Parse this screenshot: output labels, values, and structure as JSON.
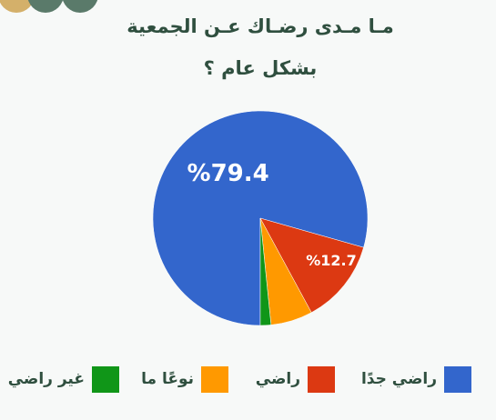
{
  "chart_data": {
    "type": "pie",
    "title_lines": [
      "مـا مـدى رضـاك عـن الجمعية",
      "بشكل عام ؟"
    ],
    "categories": [
      "راضي جدًا",
      "راضي",
      "نوعًا ما",
      "غير راضي"
    ],
    "values": [
      79.4,
      12.7,
      6.3,
      1.6
    ],
    "value_labels": [
      "%79.4",
      "%12.7",
      null,
      null
    ],
    "colors": [
      "#3366cc",
      "#dc3912",
      "#ff9900",
      "#109618"
    ],
    "legend": "bottom"
  }
}
